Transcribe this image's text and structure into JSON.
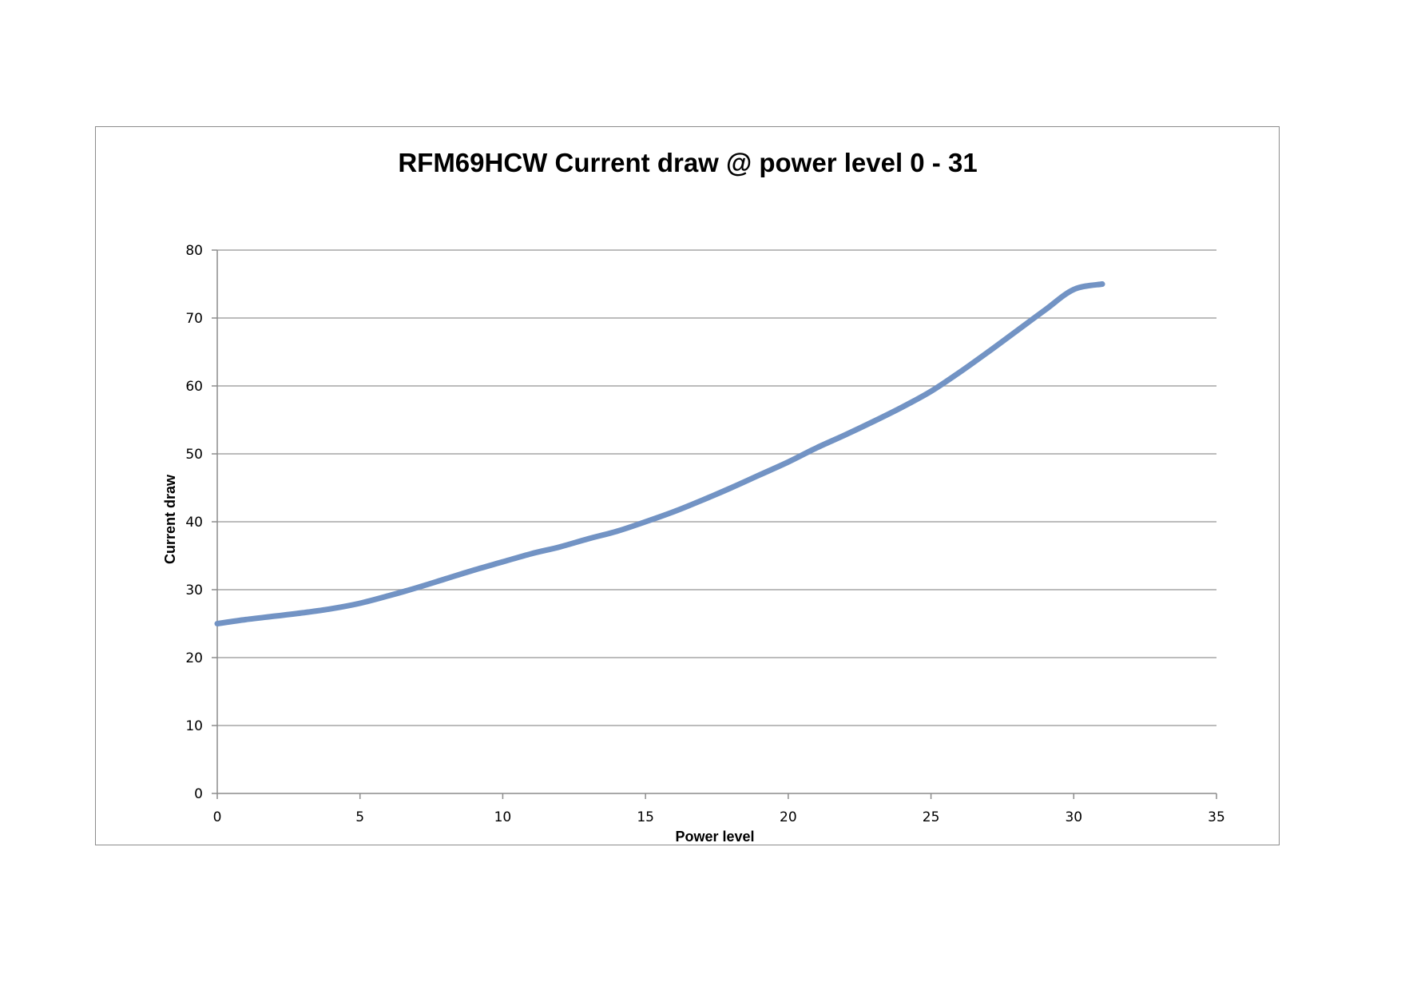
{
  "chart_data": {
    "type": "line",
    "title": "RFM69HCW Current draw @ power level 0 - 31",
    "xlabel": "Power level",
    "ylabel": "Current draw",
    "xlim": [
      0,
      35
    ],
    "ylim": [
      0,
      80
    ],
    "x_ticks": [
      "0",
      "5",
      "10",
      "15",
      "20",
      "25",
      "30",
      "35"
    ],
    "y_ticks": [
      "0",
      "10",
      "20",
      "30",
      "40",
      "50",
      "60",
      "70",
      "80"
    ],
    "grid": "horizontal",
    "legend": "none",
    "colors": {
      "line": "#7293c4",
      "grid": "#a6a6a6",
      "axis": "#8c8c8c"
    },
    "series": [
      {
        "x": [
          0,
          1,
          2,
          3,
          4,
          5,
          6,
          7,
          8,
          9,
          10,
          11,
          12,
          13,
          14,
          15,
          16,
          17,
          18,
          19,
          20,
          21,
          22,
          23,
          24,
          25,
          26,
          27,
          28,
          29,
          30,
          31
        ],
        "values": [
          25,
          25.6,
          26.1,
          26.6,
          27.2,
          28,
          29.1,
          30.3,
          31.6,
          32.9,
          34.1,
          35.3,
          36.3,
          37.5,
          38.6,
          40,
          41.5,
          43.2,
          45,
          46.9,
          48.8,
          50.9,
          52.8,
          54.8,
          56.9,
          59.2,
          62,
          65,
          68.1,
          71.2,
          74.2,
          75
        ]
      }
    ]
  }
}
